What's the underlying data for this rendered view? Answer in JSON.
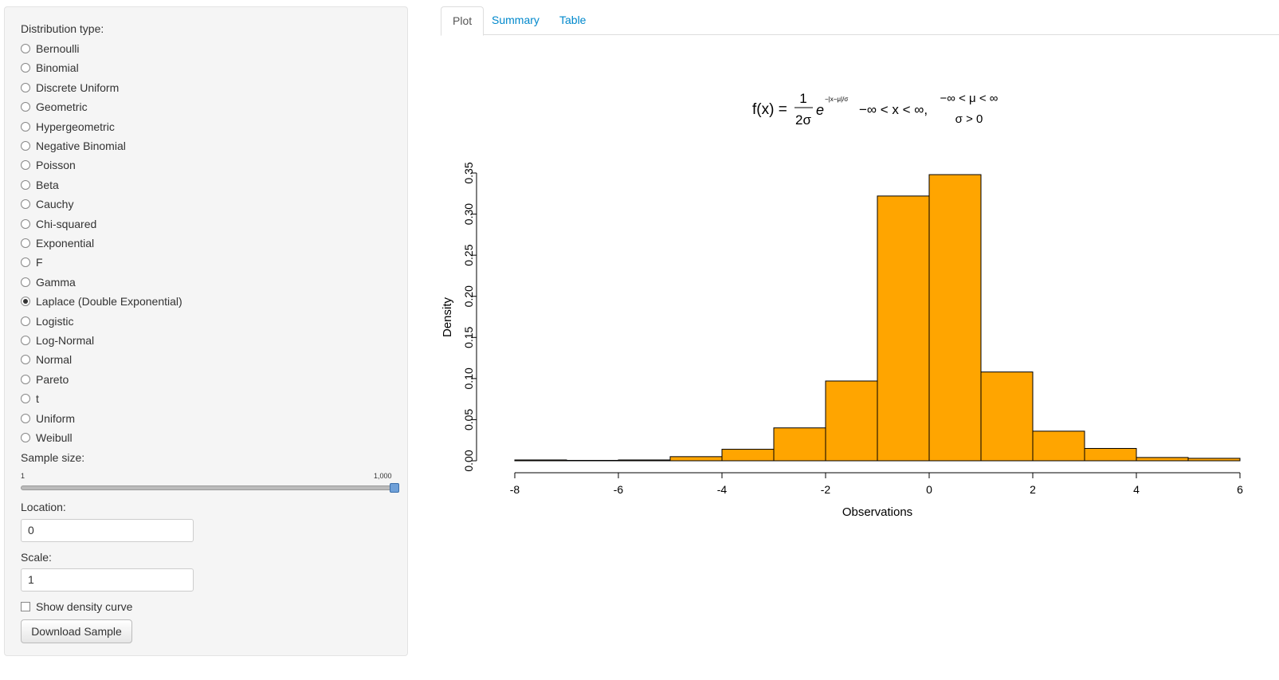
{
  "sidebar": {
    "distribution_label": "Distribution type:",
    "options": [
      "Bernoulli",
      "Binomial",
      "Discrete Uniform",
      "Geometric",
      "Hypergeometric",
      "Negative Binomial",
      "Poisson",
      "Beta",
      "Cauchy",
      "Chi-squared",
      "Exponential",
      "F",
      "Gamma",
      "Laplace (Double Exponential)",
      "Logistic",
      "Log-Normal",
      "Normal",
      "Pareto",
      "t",
      "Uniform",
      "Weibull"
    ],
    "selected": 13,
    "sample_size": {
      "label": "Sample size:",
      "min": 1,
      "max": {
        "value": 1000,
        "label": "1,000"
      },
      "value": 1000
    },
    "location": {
      "label": "Location:",
      "value": "0"
    },
    "scale": {
      "label": "Scale:",
      "value": "1"
    },
    "density_checkbox": "Show density curve",
    "download_button": "Download Sample"
  },
  "tabs": [
    "Plot",
    "Summary",
    "Table"
  ],
  "chart_data": {
    "type": "histogram",
    "formula": {
      "lhs": "f(x) =",
      "numerator": "1",
      "denominator": "2σ",
      "base": "e",
      "exponent": "−|x−μ|/σ",
      "domain": "−∞ < x < ∞,",
      "condition_1": "−∞ < μ < ∞",
      "condition_2": "σ > 0"
    },
    "x_label": "Observations",
    "y_label": "Density",
    "bins": [
      -8,
      -7,
      -6,
      -5,
      -4,
      -3,
      -2,
      -1,
      0,
      1,
      2,
      3,
      4,
      5,
      6
    ],
    "values": [
      0.001,
      0.0005,
      0.001,
      0.005,
      0.014,
      0.04,
      0.097,
      0.322,
      0.348,
      0.108,
      0.036,
      0.015,
      0.004,
      0.003
    ],
    "color": "#ffa500",
    "xlim": [
      -8,
      6
    ],
    "xticks": [
      -8,
      -6,
      -4,
      -2,
      0,
      2,
      4,
      6
    ],
    "ylim": [
      0,
      0.35
    ],
    "yticks": [
      {
        "value": 0,
        "label": "0.00"
      },
      {
        "value": 0.05,
        "label": "0.05"
      },
      {
        "value": 0.1,
        "label": "0.10"
      },
      {
        "value": 0.15,
        "label": "0.15"
      },
      {
        "value": 0.2,
        "label": "0.20"
      },
      {
        "value": 0.25,
        "label": "0.25"
      },
      {
        "value": 0.3,
        "label": "0.30"
      },
      {
        "value": 0.35,
        "label": "0.35"
      }
    ]
  }
}
